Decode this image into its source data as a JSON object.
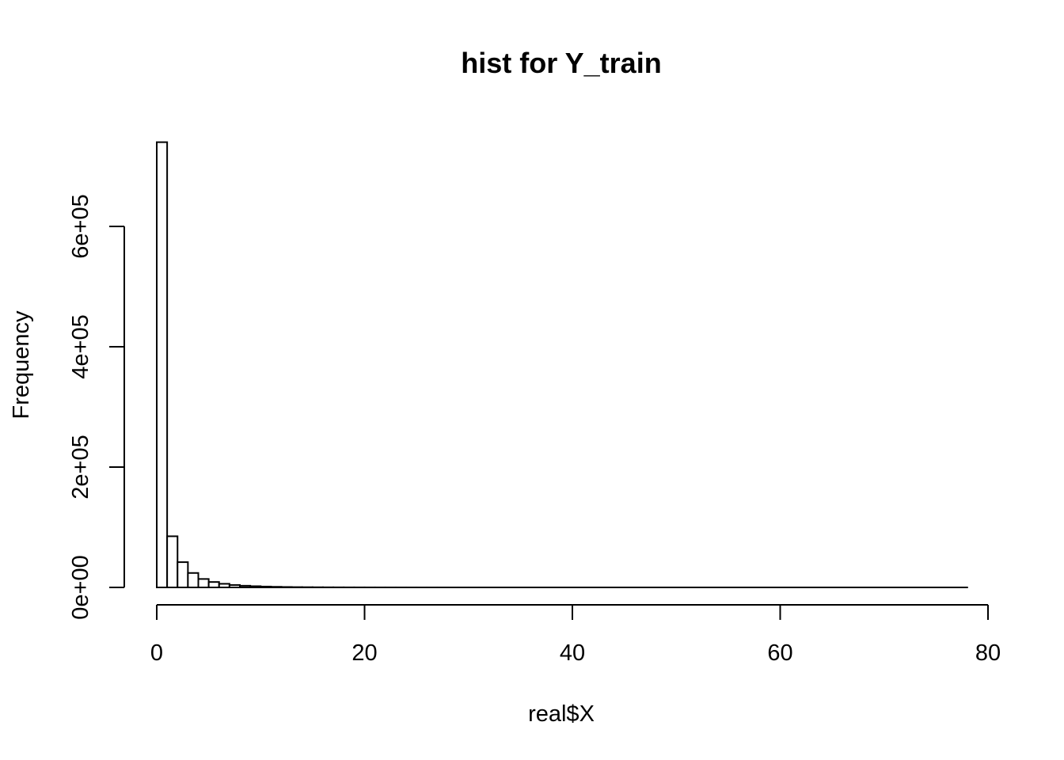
{
  "chart_data": {
    "type": "bar",
    "title": "hist for Y_train",
    "xlabel": "real$X",
    "ylabel": "Frequency",
    "xlim": [
      0,
      80
    ],
    "ylim": [
      0,
      740000
    ],
    "bin_width": 1,
    "x_ticks": [
      0,
      20,
      40,
      60,
      80
    ],
    "x_tick_labels": [
      "0",
      "20",
      "40",
      "60",
      "80"
    ],
    "y_ticks": [
      0,
      200000,
      400000,
      600000
    ],
    "y_tick_labels": [
      "0e+00",
      "2e+05",
      "4e+05",
      "6e+05"
    ],
    "bins_start": 0,
    "values": [
      740000,
      85000,
      42000,
      24000,
      14000,
      9000,
      6000,
      4000,
      2800,
      2000,
      1400,
      1000,
      700,
      500,
      380,
      280,
      200,
      150,
      110,
      80,
      60,
      45,
      35,
      25,
      20,
      15,
      12,
      9,
      7,
      5,
      4,
      3,
      2,
      2,
      1,
      1,
      1,
      1,
      1,
      1,
      1,
      1,
      1,
      1,
      1,
      1,
      1,
      1,
      1,
      1,
      1,
      1,
      1,
      1,
      1,
      1,
      1,
      1,
      1,
      1,
      1,
      1,
      1,
      1,
      1,
      1,
      1,
      1,
      1,
      1,
      1,
      1,
      1,
      1,
      1,
      1,
      1,
      1
    ],
    "grid": false,
    "legend": "none"
  }
}
